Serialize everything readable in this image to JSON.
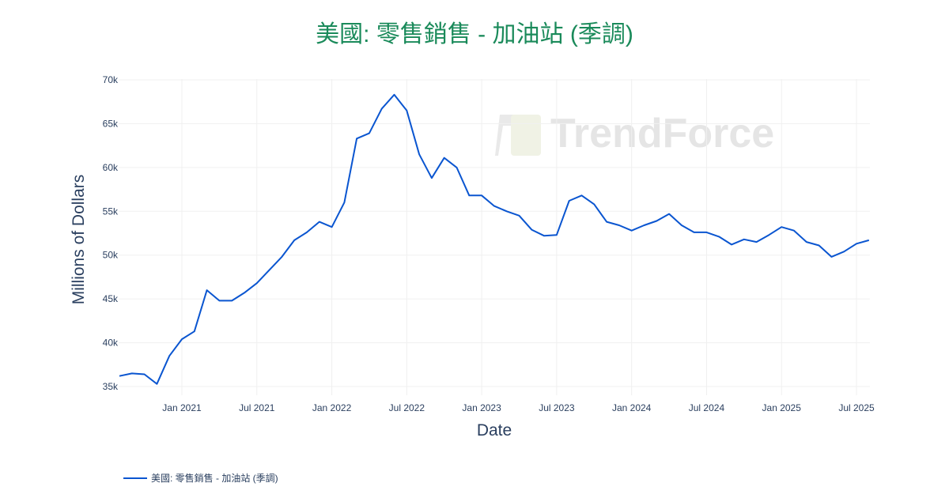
{
  "chart_data": {
    "type": "line",
    "title": "美國: 零售銷售 - 加油站 (季調)",
    "xlabel": "Date",
    "ylabel": "Millions of Dollars",
    "ylim": [
      35000,
      70000
    ],
    "y_ticks": [
      "35k",
      "40k",
      "45k",
      "50k",
      "55k",
      "60k",
      "65k",
      "70k"
    ],
    "x_ticks": [
      "Jan 2021",
      "Jul 2021",
      "Jan 2022",
      "Jul 2022",
      "Jan 2023",
      "Jul 2023",
      "Jan 2024",
      "Jul 2024",
      "Jan 2025",
      "Jul 2025"
    ],
    "grid": true,
    "legend_position": "bottom-left",
    "x": [
      "2020-08",
      "2020-09",
      "2020-10",
      "2020-11",
      "2020-12",
      "2021-01",
      "2021-02",
      "2021-03",
      "2021-04",
      "2021-05",
      "2021-06",
      "2021-07",
      "2021-08",
      "2021-09",
      "2021-10",
      "2021-11",
      "2021-12",
      "2022-01",
      "2022-02",
      "2022-03",
      "2022-04",
      "2022-05",
      "2022-06",
      "2022-07",
      "2022-08",
      "2022-09",
      "2022-10",
      "2022-11",
      "2022-12",
      "2023-01",
      "2023-02",
      "2023-03",
      "2023-04",
      "2023-05",
      "2023-06",
      "2023-07",
      "2023-08",
      "2023-09",
      "2023-10",
      "2023-11",
      "2023-12",
      "2024-01",
      "2024-02",
      "2024-03",
      "2024-04",
      "2024-05",
      "2024-06",
      "2024-07",
      "2024-08",
      "2024-09",
      "2024-10",
      "2024-11",
      "2024-12",
      "2025-01",
      "2025-02",
      "2025-03",
      "2025-04",
      "2025-05",
      "2025-06",
      "2025-07",
      "2025-08"
    ],
    "series": [
      {
        "name": "美國: 零售銷售 - 加油站 (季調)",
        "color": "#0a55d0",
        "values": [
          36200,
          36500,
          36400,
          35300,
          38500,
          40400,
          41300,
          46000,
          44800,
          44800,
          45700,
          46800,
          48300,
          49800,
          51700,
          52600,
          53800,
          53200,
          56000,
          63300,
          63900,
          66700,
          68300,
          66500,
          61500,
          58800,
          61100,
          60000,
          56800,
          56800,
          55600,
          55000,
          54500,
          52900,
          52200,
          52300,
          56200,
          56800,
          55800,
          53800,
          53400,
          52800,
          53400,
          53900,
          54700,
          53400,
          52600,
          52600,
          52100,
          51200,
          51800,
          51500,
          52300,
          53200,
          52800,
          51500,
          51100,
          49800,
          50400,
          51300,
          51700
        ]
      }
    ]
  },
  "watermark": "TrendForce",
  "legend": {
    "label": "美國: 零售銷售 - 加油站 (季調)"
  }
}
